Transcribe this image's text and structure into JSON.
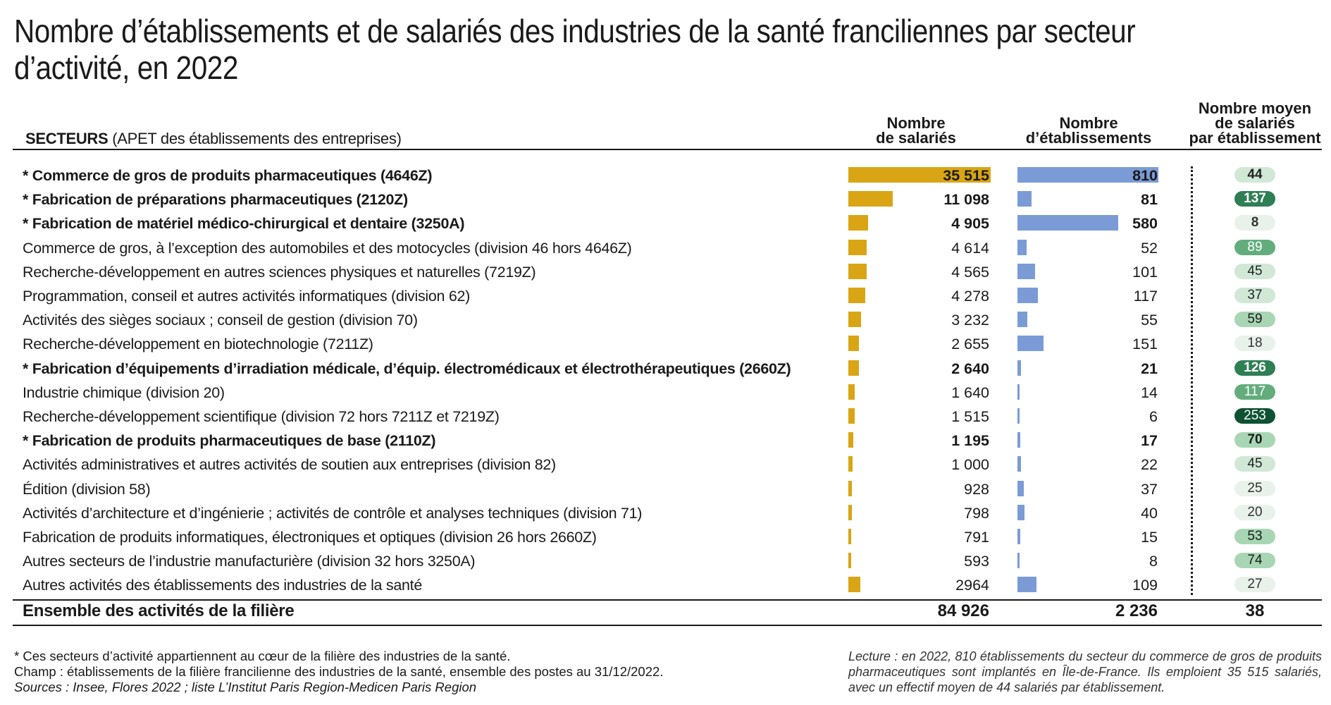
{
  "title": "Nombre d’établissements et de salariés des industries de la santé franciliennes par secteur d’activité, en 2022",
  "headers": {
    "secteurs": "SECTEURS",
    "secteurs_sub": "(APET des établissements des entreprises)",
    "salaries": [
      "Nombre",
      "de salariés"
    ],
    "etablissements": [
      "Nombre",
      "d’établissements"
    ],
    "moyen": [
      "Nombre moyen",
      "de salariés",
      "par établissement"
    ]
  },
  "colors": {
    "salaries_bar": "#d9a514",
    "etablissements_bar": "#7b9bd6",
    "pill_scale": [
      "#e8f2ea",
      "#d1e8d7",
      "#a8d6b4",
      "#63ad7d",
      "#2f7f55",
      "#0e5233"
    ]
  },
  "chart_data": {
    "type": "table",
    "title": "Nombre d’établissements et de salariés des industries de la santé franciliennes par secteur d’activité, en 2022",
    "columns": [
      "Secteur",
      "Nombre de salariés",
      "Nombre d’établissements",
      "Nombre moyen de salariés par établissement"
    ],
    "rows": [
      {
        "label": "* Commerce de gros de produits pharmaceutiques (4646Z)",
        "core": true,
        "salaries": 35515,
        "salaries_label": "35 515",
        "etablissements": 810,
        "etab_label": "810",
        "moyen": 44
      },
      {
        "label": "* Fabrication de préparations pharmaceutiques (2120Z)",
        "core": true,
        "salaries": 11098,
        "salaries_label": "11 098",
        "etablissements": 81,
        "etab_label": "81",
        "moyen": 137
      },
      {
        "label": "* Fabrication de matériel médico-chirurgical et dentaire (3250A)",
        "core": true,
        "salaries": 4905,
        "salaries_label": "4 905",
        "etablissements": 580,
        "etab_label": "580",
        "moyen": 8
      },
      {
        "label": "Commerce de gros, à l’exception des automobiles et des motocycles (division 46 hors 4646Z)",
        "core": false,
        "salaries": 4614,
        "salaries_label": "4 614",
        "etablissements": 52,
        "etab_label": "52",
        "moyen": 89
      },
      {
        "label": "Recherche-développement en autres sciences physiques et naturelles (7219Z)",
        "core": false,
        "salaries": 4565,
        "salaries_label": "4 565",
        "etablissements": 101,
        "etab_label": "101",
        "moyen": 45
      },
      {
        "label": "Programmation, conseil et autres activités informatiques (division 62)",
        "core": false,
        "salaries": 4278,
        "salaries_label": "4 278",
        "etablissements": 117,
        "etab_label": "117",
        "moyen": 37
      },
      {
        "label": "Activités des sièges sociaux ; conseil de gestion (division 70)",
        "core": false,
        "salaries": 3232,
        "salaries_label": "3 232",
        "etablissements": 55,
        "etab_label": "55",
        "moyen": 59
      },
      {
        "label": "Recherche-développement en biotechnologie (7211Z)",
        "core": false,
        "salaries": 2655,
        "salaries_label": "2 655",
        "etablissements": 151,
        "etab_label": "151",
        "moyen": 18
      },
      {
        "label": "* Fabrication d’équipements d’irradiation médicale, d’équip. électromédicaux et électrothérapeutiques (2660Z)",
        "core": true,
        "salaries": 2640,
        "salaries_label": "2 640",
        "etablissements": 21,
        "etab_label": "21",
        "moyen": 126
      },
      {
        "label": "Industrie chimique (division 20)",
        "core": false,
        "salaries": 1640,
        "salaries_label": "1 640",
        "etablissements": 14,
        "etab_label": "14",
        "moyen": 117
      },
      {
        "label": "Recherche-développement scientifique (division 72 hors 7211Z et 7219Z)",
        "core": false,
        "salaries": 1515,
        "salaries_label": "1 515",
        "etablissements": 6,
        "etab_label": "6",
        "moyen": 253
      },
      {
        "label": "* Fabrication de produits pharmaceutiques de base (2110Z)",
        "core": true,
        "salaries": 1195,
        "salaries_label": "1 195",
        "etablissements": 17,
        "etab_label": "17",
        "moyen": 70
      },
      {
        "label": "Activités administratives et autres activités de soutien aux entreprises (division 82)",
        "core": false,
        "salaries": 1000,
        "salaries_label": "1 000",
        "etablissements": 22,
        "etab_label": "22",
        "moyen": 45
      },
      {
        "label": "Édition (division 58)",
        "core": false,
        "salaries": 928,
        "salaries_label": "928",
        "etablissements": 37,
        "etab_label": "37",
        "moyen": 25
      },
      {
        "label": "Activités d’architecture et d’ingénierie ; activités de contrôle et analyses techniques (division 71)",
        "core": false,
        "salaries": 798,
        "salaries_label": "798",
        "etablissements": 40,
        "etab_label": "40",
        "moyen": 20
      },
      {
        "label": "Fabrication de produits informatiques, électroniques et optiques (division 26 hors 2660Z)",
        "core": false,
        "salaries": 791,
        "salaries_label": "791",
        "etablissements": 15,
        "etab_label": "15",
        "moyen": 53
      },
      {
        "label": "Autres secteurs de l’industrie manufacturière (division 32 hors 3250A)",
        "core": false,
        "salaries": 593,
        "salaries_label": "593",
        "etablissements": 8,
        "etab_label": "8",
        "moyen": 74
      },
      {
        "label": "Autres activités des établissements des industries de la santé",
        "core": false,
        "salaries": 2964,
        "salaries_label": "2964",
        "etablissements": 109,
        "etab_label": "109",
        "moyen": 27
      }
    ],
    "total": {
      "label": "Ensemble des activités de la filière",
      "salaries": 84926,
      "salaries_label": "84 926",
      "etablissements": 2236,
      "etab_label": "2 236",
      "moyen": 38
    },
    "salaries_max": 35515,
    "etablissements_max": 810
  },
  "notes": {
    "star": "* Ces secteurs d’activité appartiennent au cœur de la filière des industries de la santé.",
    "champ": "Champ : établissements de la filière francilienne des industries de la santé, ensemble des postes au 31/12/2022.",
    "sources": "Sources : Insee, Flores 2022 ; liste L’Institut Paris Region-Medicen Paris Region",
    "lecture": "Lecture : en 2022, 810 établissements du secteur du commerce de gros de produits pharmaceutiques sont implantés en Île-de-France. Ils emploient 35 515 salariés, avec un effectif moyen de 44 salariés par établissement."
  }
}
